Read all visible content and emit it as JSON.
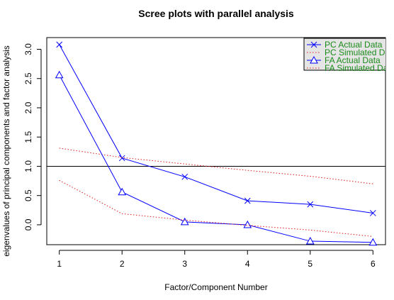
{
  "chart_data": {
    "type": "line",
    "title": "Scree plots with parallel analysis",
    "xlabel": "Factor/Component Number",
    "ylabel": "eigenvalues of principal components and factor analysis",
    "x": [
      1,
      2,
      3,
      4,
      5,
      6
    ],
    "xlim": [
      0.8,
      6.2
    ],
    "ylim": [
      -0.34,
      3.2
    ],
    "xticks": [
      "1",
      "2",
      "3",
      "4",
      "5",
      "6"
    ],
    "yticks": [
      "0.0",
      "0.5",
      "1.0",
      "1.5",
      "2.0",
      "2.5",
      "3.0"
    ],
    "reference_line": 1.0,
    "legend_position": "top-right",
    "series": [
      {
        "name": "PC  Actual Data",
        "values": [
          3.08,
          1.14,
          0.82,
          0.41,
          0.35,
          0.2
        ],
        "color": "#0000ff",
        "style": "solid",
        "marker": "x"
      },
      {
        "name": "PC  Simulated Data",
        "values": [
          1.31,
          1.15,
          1.04,
          0.93,
          0.83,
          0.7
        ],
        "color": "#e41a1c",
        "style": "dotted",
        "marker": "none"
      },
      {
        "name": "FA  Actual Data",
        "values": [
          2.56,
          0.56,
          0.05,
          0.0,
          -0.28,
          -0.3
        ],
        "color": "#0000ff",
        "style": "solid",
        "marker": "triangle"
      },
      {
        "name": "FA  Simulated Data",
        "values": [
          0.76,
          0.19,
          0.08,
          -0.01,
          -0.09,
          -0.2
        ],
        "color": "#e41a1c",
        "style": "dotted",
        "marker": "none"
      }
    ]
  }
}
